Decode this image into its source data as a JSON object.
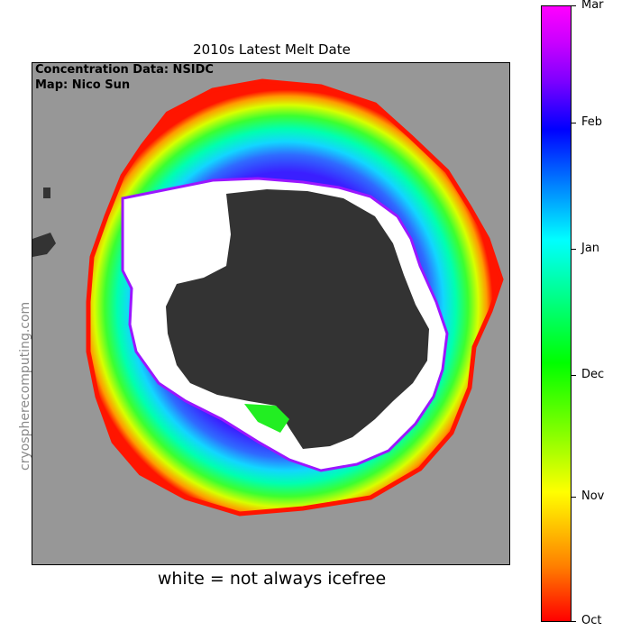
{
  "title": "2010s Latest Melt Date",
  "credits": {
    "data": "Concentration Data: NSIDC",
    "map": "Map: Nico Sun"
  },
  "watermark": "cryospherecomputing.com",
  "caption": "white = not always icefree",
  "colorbar": {
    "labels": [
      "Mar",
      "Feb",
      "Jan",
      "Dec",
      "Nov",
      "Oct"
    ]
  },
  "colors": {
    "ocean": "#979797",
    "land": "#333333",
    "persistent_ice": "#ffffff"
  }
}
